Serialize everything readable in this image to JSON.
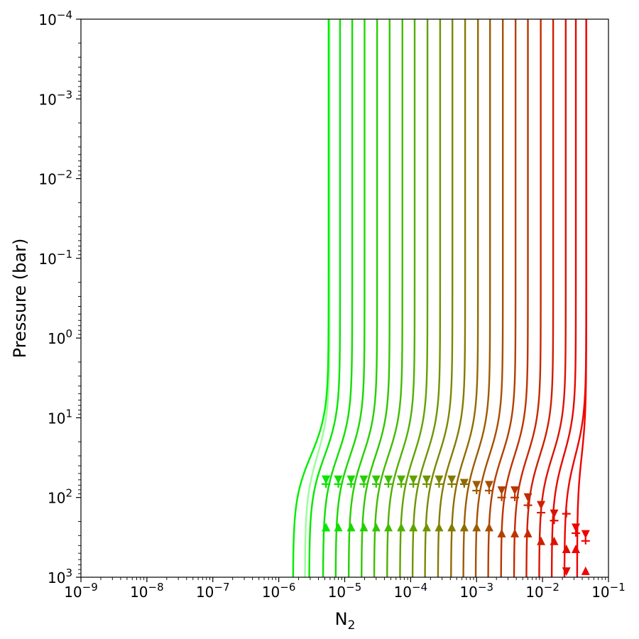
{
  "chart_data": {
    "type": "line",
    "xlabel": "N₂",
    "ylabel": "Pressure (bar)",
    "xscale": "log",
    "yscale": "log",
    "yaxis_inverted": true,
    "xlim": [
      1e-09,
      0.1
    ],
    "ylim": [
      1000,
      0.0001
    ],
    "grid": false,
    "x_tick_labels": [
      {
        "base": "10",
        "exp": "−9",
        "value": 1e-09
      },
      {
        "base": "10",
        "exp": "−8",
        "value": 1e-08
      },
      {
        "base": "10",
        "exp": "−7",
        "value": 1e-07
      },
      {
        "base": "10",
        "exp": "−6",
        "value": 1e-06
      },
      {
        "base": "10",
        "exp": "−5",
        "value": 1e-05
      },
      {
        "base": "10",
        "exp": "−4",
        "value": 0.0001
      },
      {
        "base": "10",
        "exp": "−3",
        "value": 0.001
      },
      {
        "base": "10",
        "exp": "−2",
        "value": 0.01
      },
      {
        "base": "10",
        "exp": "−1",
        "value": 0.1
      }
    ],
    "y_tick_labels": [
      {
        "base": "10",
        "exp": "−4",
        "value": 0.0001
      },
      {
        "base": "10",
        "exp": "−3",
        "value": 0.001
      },
      {
        "base": "10",
        "exp": "−2",
        "value": 0.01
      },
      {
        "base": "10",
        "exp": "−1",
        "value": 0.1
      },
      {
        "base": "10",
        "exp": "0",
        "value": 1
      },
      {
        "base": "10",
        "exp": "1",
        "value": 10
      },
      {
        "base": "10",
        "exp": "2",
        "value": 100
      },
      {
        "base": "10",
        "exp": "3",
        "value": 1000
      }
    ],
    "series": [
      {
        "color": "#99ff99",
        "x_top": 5.9e-06,
        "x_bottom": 2.5e-06
      },
      {
        "color": "#00ee00",
        "x_top": 5.7e-06,
        "x_bottom": 1.65e-06,
        "marker_x": 5.2e-06,
        "p_down": 60,
        "p_plus": 68,
        "p_up": 235
      },
      {
        "color": "#05e800",
        "x_top": 8.5e-06,
        "x_bottom": 2.9e-06,
        "marker_x": 5.2e-06,
        "p_down": 60,
        "p_plus": 68,
        "p_up": 235
      },
      {
        "color": "#10e000",
        "x_top": 1.3e-05,
        "x_bottom": 4.7e-06,
        "marker_x": 8e-06,
        "p_down": 60,
        "p_plus": 68,
        "p_up": 235
      },
      {
        "color": "#1ad800",
        "x_top": 2e-05,
        "x_bottom": 7.3e-06,
        "marker_x": 1.25e-05,
        "p_down": 60,
        "p_plus": 68,
        "p_up": 235
      },
      {
        "color": "#25d000",
        "x_top": 3.1e-05,
        "x_bottom": 1.15e-05,
        "marker_x": 1.95e-05,
        "p_down": 60,
        "p_plus": 68,
        "p_up": 235
      },
      {
        "color": "#30c700",
        "x_top": 4.8e-05,
        "x_bottom": 1.8e-05,
        "marker_x": 3e-05,
        "p_down": 60,
        "p_plus": 68,
        "p_up": 235
      },
      {
        "color": "#40bc00",
        "x_top": 7.5e-05,
        "x_bottom": 2.8e-05,
        "marker_x": 4.6e-05,
        "p_down": 60,
        "p_plus": 68,
        "p_up": 235
      },
      {
        "color": "#50b000",
        "x_top": 0.000115,
        "x_bottom": 4.4e-05,
        "marker_x": 7.2e-05,
        "p_down": 60,
        "p_plus": 68,
        "p_up": 235
      },
      {
        "color": "#60a200",
        "x_top": 0.00018,
        "x_bottom": 6.9e-05,
        "marker_x": 0.00011,
        "p_down": 60,
        "p_plus": 68,
        "p_up": 235
      },
      {
        "color": "#6e9500",
        "x_top": 0.00028,
        "x_bottom": 0.000107,
        "marker_x": 0.000175,
        "p_down": 60,
        "p_plus": 68,
        "p_up": 235
      },
      {
        "color": "#7a8800",
        "x_top": 0.00043,
        "x_bottom": 0.000165,
        "marker_x": 0.00027,
        "p_down": 60,
        "p_plus": 68,
        "p_up": 235
      },
      {
        "color": "#857a00",
        "x_top": 0.00067,
        "x_bottom": 0.00026,
        "marker_x": 0.00042,
        "p_down": 60,
        "p_plus": 68,
        "p_up": 235
      },
      {
        "color": "#906b00",
        "x_top": 0.00105,
        "x_bottom": 0.00041,
        "marker_x": 0.00065,
        "p_down": 66,
        "p_plus": 68,
        "p_up": 235
      },
      {
        "color": "#9c5c00",
        "x_top": 0.0016,
        "x_bottom": 0.00063,
        "marker_x": 0.001,
        "p_down": 70,
        "p_plus": 82,
        "p_up": 235
      },
      {
        "color": "#a84e00",
        "x_top": 0.0025,
        "x_bottom": 0.00097,
        "marker_x": 0.00155,
        "p_down": 70,
        "p_plus": 82,
        "p_up": 235
      },
      {
        "color": "#b24000",
        "x_top": 0.0039,
        "x_bottom": 0.0015,
        "marker_x": 0.0024,
        "p_down": 82,
        "p_plus": 100,
        "p_up": 280
      },
      {
        "color": "#bc3400",
        "x_top": 0.006,
        "x_bottom": 0.00235,
        "marker_x": 0.0038,
        "p_down": 82,
        "p_plus": 100,
        "p_up": 280
      },
      {
        "color": "#c62800",
        "x_top": 0.0094,
        "x_bottom": 0.0037,
        "marker_x": 0.006,
        "p_down": 100,
        "p_plus": 125,
        "p_up": 280
      },
      {
        "color": "#d01e00",
        "x_top": 0.0145,
        "x_bottom": 0.0057,
        "marker_x": 0.0095,
        "p_down": 125,
        "p_plus": 155,
        "p_up": 350
      },
      {
        "color": "#da1400",
        "x_top": 0.0225,
        "x_bottom": 0.0089,
        "marker_x": 0.015,
        "p_down": 160,
        "p_plus": 195,
        "p_up": 350
      },
      {
        "color": "#e40a00",
        "x_top": 0.032,
        "x_bottom": 0.0138,
        "marker_x": 0.023,
        "p_down": 850,
        "p_plus": 160,
        "p_up": 440
      },
      {
        "color": "#ee0500",
        "x_top": 0.046,
        "x_bottom": 0.0215,
        "marker_x": 0.032,
        "p_down": 240,
        "p_plus": 280,
        "p_up": 440
      },
      {
        "color": "#f20000",
        "x_top": 0.046,
        "x_bottom": 0.0335,
        "marker_x": 0.045,
        "p_down": 290,
        "p_plus": 350,
        "p_up": 830
      }
    ]
  }
}
